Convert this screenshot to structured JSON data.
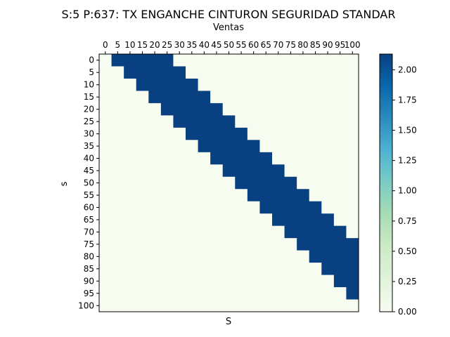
{
  "chart_data": {
    "type": "heatmap",
    "title": "S:5 P:637: TX ENGANCHE CINTURON SEGURIDAD STANDAR",
    "x_top_label": "Ventas",
    "xlabel": "S",
    "ylabel": "s",
    "x_range": [
      0,
      100
    ],
    "y_range": [
      0,
      100
    ],
    "x_ticks": [
      0,
      5,
      10,
      15,
      20,
      25,
      30,
      35,
      40,
      45,
      50,
      55,
      60,
      65,
      70,
      75,
      80,
      85,
      90,
      95,
      100
    ],
    "y_ticks": [
      0,
      5,
      10,
      15,
      20,
      25,
      30,
      35,
      40,
      45,
      50,
      55,
      60,
      65,
      70,
      75,
      80,
      85,
      90,
      95,
      100
    ],
    "grid": false,
    "colormap": "GnBu",
    "colorbar": {
      "range": [
        0.0,
        2.13
      ],
      "ticks": [
        "0.00",
        "0.25",
        "0.50",
        "0.75",
        "1.00",
        "1.25",
        "1.50",
        "1.75",
        "2.00"
      ]
    },
    "value_inside_band": 2.13,
    "value_outside_band": 0.0,
    "band": {
      "description": "cell (s, S) filled where s+5 <= S <= s+25 (clipped to 100)",
      "s_bins": 21,
      "S_bins": 21
    },
    "colors": {
      "low": "#f7fcf0",
      "high": "#084081"
    }
  }
}
